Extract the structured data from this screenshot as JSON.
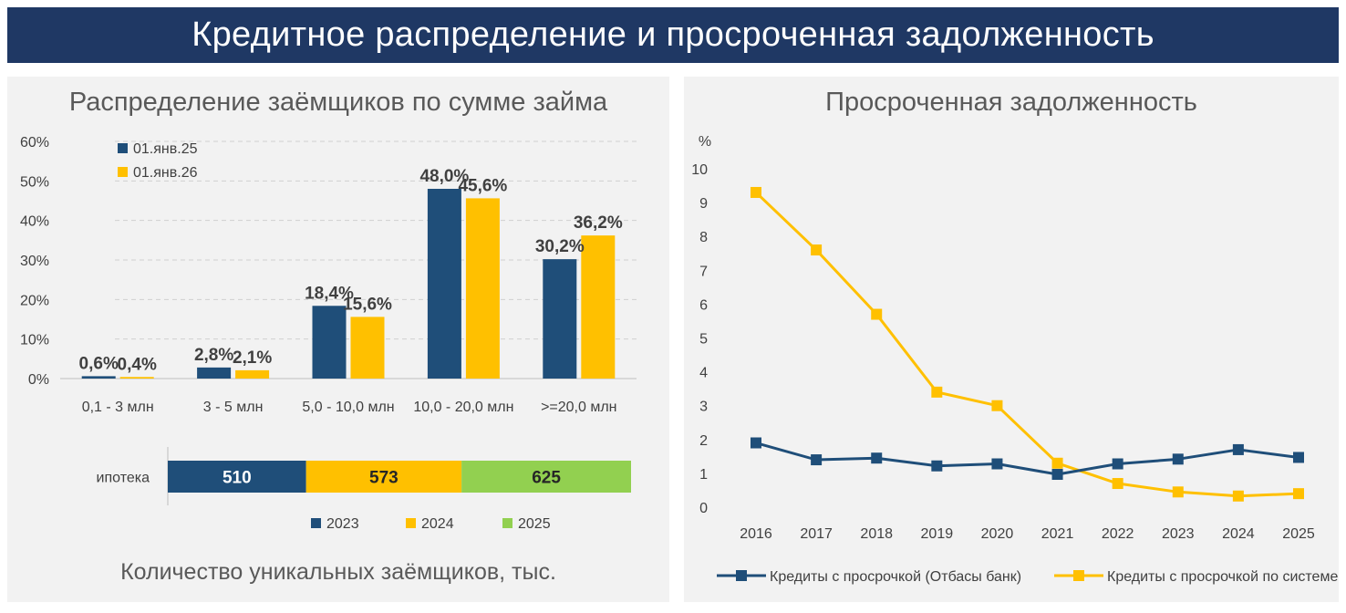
{
  "page": {
    "title": "Кредитное распределение и просроченная задолженность",
    "colors": {
      "navy": "#1f4e79",
      "yellow": "#ffc000",
      "green": "#92d050",
      "banner": "#1f3864"
    }
  },
  "chart_data": [
    {
      "type": "bar",
      "title": "Распределение заёмщиков по сумме займа",
      "categories": [
        "0,1 - 3 млн",
        "3 - 5 млн",
        "5,0 - 10,0 млн",
        "10,0 - 20,0 млн",
        ">=20,0 млн"
      ],
      "series": [
        {
          "name": "01.янв.25",
          "values": [
            0.6,
            2.8,
            18.4,
            48.0,
            30.2
          ],
          "labels": [
            "0,6%",
            "2,8%",
            "18,4%",
            "48,0%",
            "30,2%"
          ]
        },
        {
          "name": "01.янв.26",
          "values": [
            0.4,
            2.1,
            15.6,
            45.6,
            36.2
          ],
          "labels": [
            "0,4%",
            "2,1%",
            "15,6%",
            "45,6%",
            "36,2%"
          ]
        }
      ],
      "ylim": [
        0,
        60
      ],
      "yticks": [
        "0%",
        "10%",
        "20%",
        "30%",
        "40%",
        "50%",
        "60%"
      ],
      "grid": true,
      "legend": "top-left"
    },
    {
      "type": "bar",
      "subtype": "stacked-horizontal",
      "title": "Количество уникальных заёмщиков, тыс.",
      "categories": [
        "ипотека"
      ],
      "series": [
        {
          "name": "2023",
          "values": [
            510
          ]
        },
        {
          "name": "2024",
          "values": [
            573
          ]
        },
        {
          "name": "2025",
          "values": [
            625
          ]
        }
      ],
      "legend": "bottom"
    },
    {
      "type": "line",
      "title": "Просроченная задолженность",
      "ylabel": "%",
      "x": [
        "2016",
        "2017",
        "2018",
        "2019",
        "2020",
        "2021",
        "2022",
        "2023",
        "2024",
        "2025"
      ],
      "series": [
        {
          "name": "Кредиты с просрочкой (Отбасы банк)",
          "values": [
            1.9,
            1.4,
            1.45,
            1.22,
            1.28,
            0.97,
            1.28,
            1.42,
            1.7,
            1.47
          ]
        },
        {
          "name": "Кредиты с просрочкой по системе",
          "values": [
            9.3,
            7.6,
            5.7,
            3.4,
            3.0,
            1.3,
            0.7,
            0.45,
            0.33,
            0.4
          ]
        }
      ],
      "ylim": [
        0,
        10
      ],
      "yticks": [
        "0",
        "1",
        "2",
        "3",
        "4",
        "5",
        "6",
        "7",
        "8",
        "9",
        "10"
      ],
      "grid": false,
      "legend": "bottom"
    }
  ]
}
